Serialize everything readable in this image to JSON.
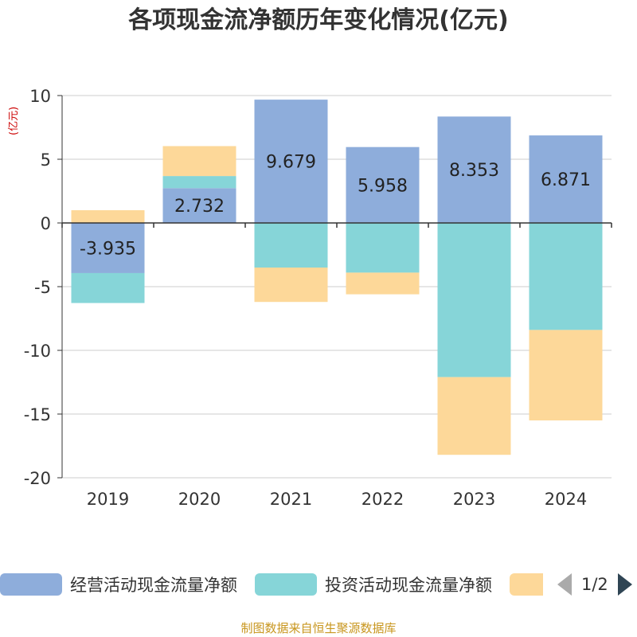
{
  "title": "各项现金流净额历年变化情况(亿元)",
  "unit_label": "(亿元)",
  "footer": "制图数据来自恒生聚源数据库",
  "legend": {
    "items": [
      {
        "label": "经营活动现金流量净额",
        "color": "#8eaddb"
      },
      {
        "label": "投资活动现金流量净额",
        "color": "#86d5d8"
      },
      {
        "label": "",
        "color": "#fdd899"
      }
    ],
    "page_indicator": "1/2"
  },
  "chart_data": {
    "type": "bar",
    "stacked": true,
    "categories": [
      "2019",
      "2020",
      "2021",
      "2022",
      "2023",
      "2024"
    ],
    "series": [
      {
        "name": "经营活动现金流量净额",
        "color": "#8eaddb",
        "values": [
          -3.935,
          2.732,
          9.679,
          5.958,
          8.353,
          6.871
        ]
      },
      {
        "name": "投资活动现金流量净额",
        "color": "#86d5d8",
        "values": [
          -2.35,
          0.95,
          -3.5,
          -3.9,
          -12.1,
          -8.4
        ]
      },
      {
        "name": "",
        "color": "#fdd899",
        "values": [
          1.0,
          2.35,
          -2.7,
          -1.7,
          -6.1,
          -7.1
        ]
      }
    ],
    "data_labels_series": 0,
    "ylim": [
      -20,
      10
    ],
    "yticks": [
      10,
      5,
      0,
      -5,
      -10,
      -15,
      -20
    ],
    "xlabel": "",
    "ylabel": "(亿元)",
    "grid": true
  }
}
